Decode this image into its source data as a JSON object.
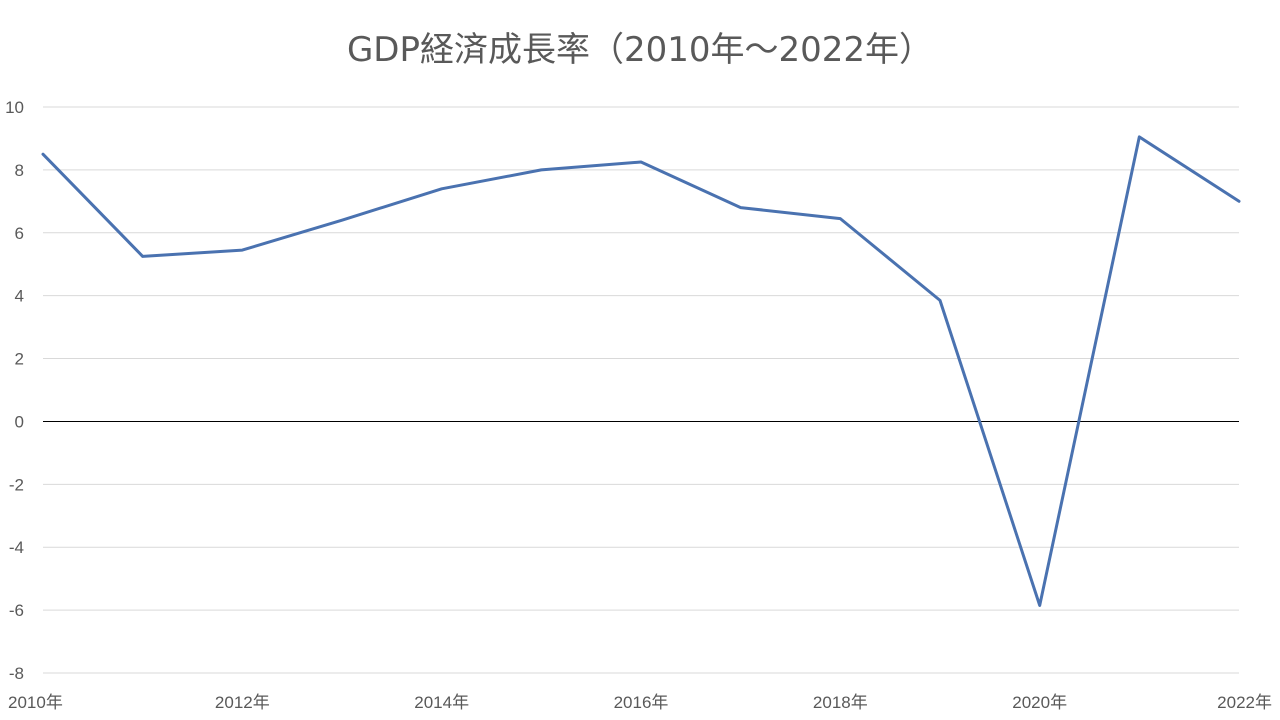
{
  "chart_data": {
    "type": "line",
    "title": "GDP経済成長率（2010年～2022年）",
    "xlabel": "",
    "ylabel": "",
    "x": [
      "2010年",
      "2011年",
      "2012年",
      "2013年",
      "2014年",
      "2015年",
      "2016年",
      "2017年",
      "2018年",
      "2019年",
      "2020年",
      "2021年",
      "2022年"
    ],
    "x_tick_labels": [
      "2010年",
      "2012年",
      "2014年",
      "2016年",
      "2018年",
      "2020年",
      "2022年"
    ],
    "series": [
      {
        "values": [
          8.5,
          5.25,
          5.45,
          6.4,
          7.4,
          8.0,
          8.25,
          6.8,
          6.45,
          3.85,
          -5.85,
          9.05,
          7.0
        ]
      }
    ],
    "ylim": [
      -8,
      10
    ],
    "y_ticks": [
      10,
      8,
      6,
      4,
      2,
      0,
      -2,
      -4,
      -6,
      -8
    ],
    "grid": true,
    "legend": "none",
    "colors": {
      "line": "#4a72b0",
      "grid": "#d9d9d9",
      "zero_line": "#000000",
      "text": "#595959"
    }
  }
}
